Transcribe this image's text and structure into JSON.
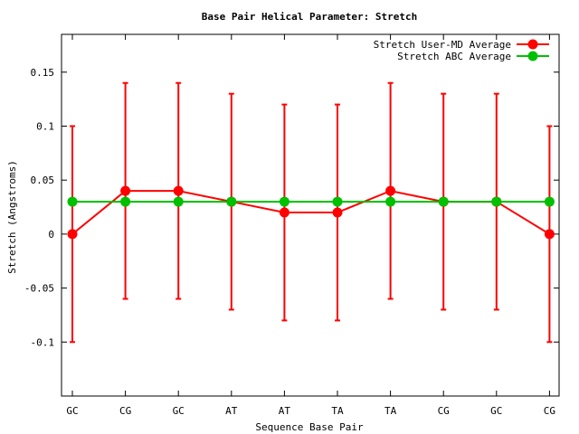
{
  "chart_data": {
    "type": "line",
    "title": "Base Pair Helical Parameter: Stretch",
    "xlabel": "Sequence Base Pair",
    "ylabel": "Stretch (Angstroms)",
    "categories": [
      "GC",
      "CG",
      "GC",
      "AT",
      "AT",
      "TA",
      "TA",
      "CG",
      "GC",
      "CG"
    ],
    "ylim": [
      -0.15,
      0.185
    ],
    "yticks": [
      -0.1,
      -0.05,
      0,
      0.05,
      0.1,
      0.15
    ],
    "ytick_labels": [
      "-0.1",
      "-0.05",
      "0",
      "0.05",
      "0.1",
      "0.15"
    ],
    "grid": false,
    "legend_position": "top-right",
    "series": [
      {
        "name": "Stretch User-MD Average",
        "color": "#ff0000",
        "values": [
          0.0,
          0.04,
          0.04,
          0.03,
          0.02,
          0.02,
          0.04,
          0.03,
          0.03,
          0.0
        ],
        "error_low": [
          -0.1,
          -0.06,
          -0.06,
          -0.07,
          -0.08,
          -0.08,
          -0.06,
          -0.07,
          -0.07,
          -0.1
        ],
        "error_high": [
          0.1,
          0.14,
          0.14,
          0.13,
          0.12,
          0.12,
          0.14,
          0.13,
          0.13,
          0.1
        ]
      },
      {
        "name": "Stretch ABC Average",
        "color": "#00c000",
        "values": [
          0.03,
          0.03,
          0.03,
          0.03,
          0.03,
          0.03,
          0.03,
          0.03,
          0.03,
          0.03
        ]
      }
    ]
  }
}
